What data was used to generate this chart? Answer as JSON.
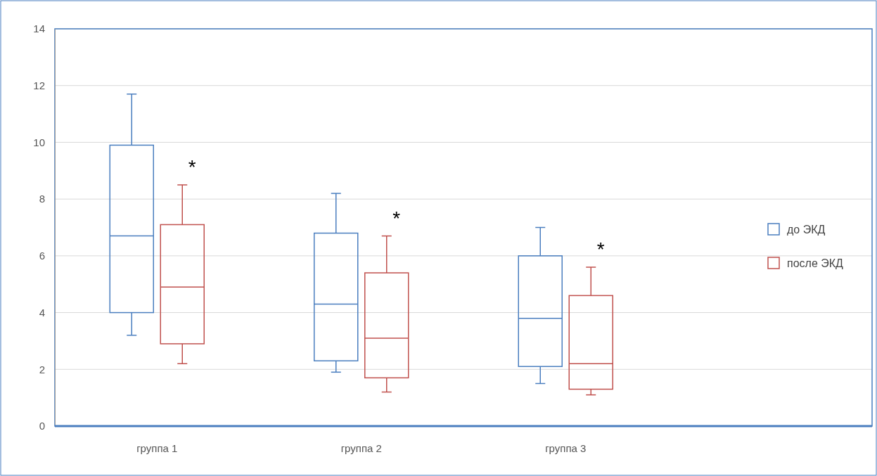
{
  "chart_data": {
    "type": "box",
    "categories": [
      "группа 1",
      "группа 2",
      "группа 3"
    ],
    "series": [
      {
        "name": "до ЭКД",
        "color": "#4a7ebf",
        "boxes": [
          {
            "low": 3.2,
            "q1": 4.0,
            "median": 6.7,
            "q3": 9.9,
            "high": 11.7
          },
          {
            "low": 1.9,
            "q1": 2.3,
            "median": 4.3,
            "q3": 6.8,
            "high": 8.2
          },
          {
            "low": 1.5,
            "q1": 2.1,
            "median": 3.8,
            "q3": 6.0,
            "high": 7.0
          }
        ]
      },
      {
        "name": "после ЭКД",
        "color": "#c0504d",
        "boxes": [
          {
            "low": 2.2,
            "q1": 2.9,
            "median": 4.9,
            "q3": 7.1,
            "high": 8.5
          },
          {
            "low": 1.2,
            "q1": 1.7,
            "median": 3.1,
            "q3": 5.4,
            "high": 6.7
          },
          {
            "low": 1.1,
            "q1": 1.3,
            "median": 2.2,
            "q3": 4.6,
            "high": 5.6
          }
        ]
      }
    ],
    "ylim": [
      0,
      14
    ],
    "yticks": [
      0,
      2,
      4,
      6,
      8,
      10,
      12,
      14
    ],
    "grid": "y",
    "legend": "right",
    "annotations": [
      "*",
      "*",
      "*"
    ]
  }
}
